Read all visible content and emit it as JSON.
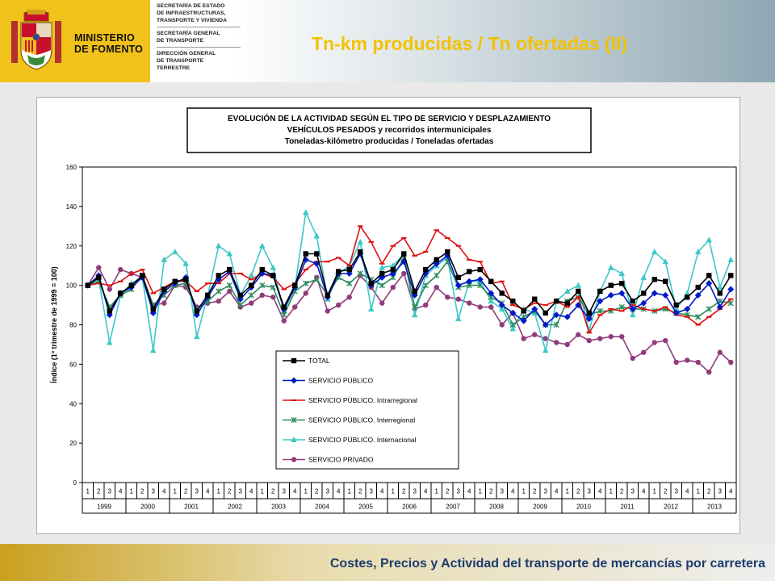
{
  "header": {
    "ministry": [
      "MINISTERIO",
      "DE FOMENTO"
    ],
    "departments": [
      "SECRETARÍA DE ESTADO\nDE INFRAESTRUCTURAS,\nTRANSPORTE Y VIVIENDA",
      "SECRETARÍA GENERAL\nDE TRANSPORTE",
      "DIRECCIÓN GENERAL\nDE TRANSPORTE\nTERRESTRE"
    ],
    "title": "Tn-km producidas / Tn ofertadas (II)"
  },
  "footer": {
    "text": "Costes, Precios y Actividad del transporte de mercancías por carretera"
  },
  "colors": {
    "title": "#f2c200",
    "footer_text": "#1c3c6e",
    "logo_bg": "#f1c21a"
  },
  "chart_data": {
    "type": "line",
    "title_lines": [
      "EVOLUCIÓN DE LA ACTIVIDAD SEGÚN EL TIPO DE SERVICIO Y DESPLAZAMIENTO",
      "VEHÍCULOS PESADOS y recorridos intermunicipales",
      "Toneladas-kilómetro producidas / Toneladas ofertadas"
    ],
    "ylabel": "Índice (1º trimestre de 1999 = 100)",
    "xlabel": "",
    "ylim": [
      0,
      160
    ],
    "yticks": [
      0,
      20,
      40,
      60,
      80,
      100,
      120,
      140,
      160
    ],
    "years": [
      "1999",
      "2000",
      "2001",
      "2002",
      "2003",
      "2004",
      "2005",
      "2006",
      "2007",
      "2008",
      "2009",
      "2010",
      "2011",
      "2012",
      "2013"
    ],
    "quarters": [
      "1",
      "2",
      "3",
      "4"
    ],
    "legend_position": "bottom-left",
    "series": [
      {
        "name": "TOTAL",
        "color": "#000000",
        "marker": "square",
        "values": [
          100,
          104,
          87,
          96,
          100,
          105,
          88,
          98,
          102,
          103,
          87,
          95,
          105,
          108,
          95,
          100,
          108,
          105,
          89,
          100,
          116,
          116,
          95,
          107,
          108,
          117,
          101,
          106,
          108,
          116,
          97,
          108,
          113,
          117,
          104,
          107,
          108,
          102,
          96,
          92,
          87,
          93,
          86,
          92,
          91,
          97,
          86,
          97,
          100,
          101,
          92,
          96,
          103,
          102,
          90,
          94,
          99,
          105,
          96,
          105
        ]
      },
      {
        "name": "SERVICIO PÚBLICO",
        "color": "#0019c8",
        "marker": "diamond",
        "values": [
          100,
          105,
          85,
          96,
          99,
          104,
          86,
          97,
          101,
          104,
          85,
          94,
          103,
          107,
          93,
          99,
          106,
          105,
          88,
          99,
          113,
          111,
          94,
          106,
          106,
          116,
          100,
          104,
          106,
          112,
          95,
          106,
          111,
          115,
          100,
          102,
          103,
          96,
          90,
          86,
          82,
          88,
          80,
          85,
          84,
          90,
          83,
          92,
          95,
          96,
          88,
          91,
          96,
          95,
          86,
          88,
          95,
          101,
          89,
          98
        ]
      },
      {
        "name": "SERVICIO PÚBLICO. Intrarregional",
        "color": "#e01010",
        "marker": "dash",
        "values": [
          100,
          101,
          100,
          102,
          106,
          108,
          96,
          99,
          102,
          102,
          97,
          101,
          101,
          106,
          106,
          103,
          106,
          104,
          98,
          101,
          108,
          112,
          112,
          114,
          110,
          130,
          122,
          111,
          120,
          124,
          115,
          117,
          128,
          124,
          120,
          113,
          112,
          101,
          102,
          90,
          88,
          91,
          90,
          92,
          89,
          94,
          76,
          85,
          88,
          87,
          90,
          88,
          87,
          89,
          85,
          84,
          80,
          84,
          88,
          93
        ]
      },
      {
        "name": "SERVICIO PÚBLICO. Interregional",
        "color": "#2c8c5c",
        "marker": "star",
        "values": [
          100,
          102,
          89,
          95,
          98,
          105,
          90,
          95,
          100,
          101,
          88,
          92,
          97,
          100,
          90,
          95,
          100,
          99,
          85,
          97,
          101,
          103,
          95,
          104,
          101,
          106,
          103,
          100,
          104,
          114,
          89,
          100,
          105,
          112,
          99,
          100,
          100,
          94,
          91,
          80,
          84,
          87,
          80,
          80,
          92,
          94,
          85,
          87,
          87,
          89,
          88,
          88,
          87,
          88,
          86,
          85,
          84,
          88,
          92,
          91
        ]
      },
      {
        "name": "SERVICIO PÚBLICO. Internacional",
        "color": "#3cc8c8",
        "marker": "triangle",
        "values": [
          100,
          103,
          71,
          95,
          101,
          104,
          67,
          113,
          117,
          111,
          74,
          95,
          120,
          116,
          95,
          105,
          120,
          109,
          87,
          99,
          137,
          125,
          93,
          106,
          110,
          122,
          88,
          109,
          110,
          116,
          85,
          105,
          110,
          114,
          83,
          102,
          102,
          92,
          88,
          78,
          88,
          86,
          67,
          92,
          97,
          100,
          77,
          97,
          109,
          106,
          85,
          104,
          117,
          112,
          88,
          96,
          117,
          123,
          99,
          113
        ]
      },
      {
        "name": "SERVICIO PRIVADO",
        "color": "#903c7a",
        "marker": "circle",
        "values": [
          100,
          109,
          98,
          108,
          106,
          104,
          90,
          91,
          100,
          99,
          89,
          91,
          92,
          97,
          89,
          91,
          95,
          94,
          82,
          89,
          96,
          104,
          87,
          90,
          94,
          105,
          99,
          91,
          99,
          106,
          88,
          90,
          99,
          94,
          93,
          91,
          89,
          89,
          80,
          86,
          73,
          75,
          73,
          71,
          70,
          75,
          72,
          73,
          74,
          74,
          63,
          66,
          71,
          72,
          61,
          62,
          61,
          56,
          66,
          61
        ]
      }
    ]
  }
}
